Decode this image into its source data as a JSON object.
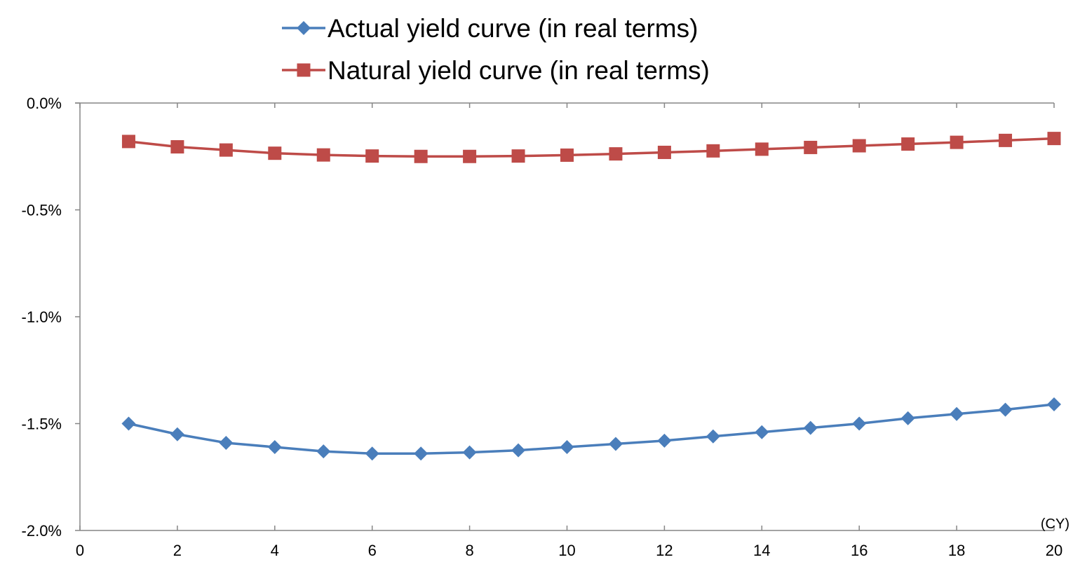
{
  "chart_data": {
    "type": "line",
    "x": [
      1,
      2,
      3,
      4,
      5,
      6,
      7,
      8,
      9,
      10,
      11,
      12,
      13,
      14,
      15,
      16,
      17,
      18,
      19,
      20
    ],
    "series": [
      {
        "name": "Actual yield curve (in real terms)",
        "color": "#4a7ebb",
        "marker": "diamond",
        "values": [
          -1.5,
          -1.55,
          -1.59,
          -1.61,
          -1.63,
          -1.64,
          -1.64,
          -1.635,
          -1.625,
          -1.61,
          -1.595,
          -1.58,
          -1.56,
          -1.54,
          -1.52,
          -1.5,
          -1.475,
          -1.455,
          -1.435,
          -1.41
        ]
      },
      {
        "name": "Natural yield curve (in real terms)",
        "color": "#be4b48",
        "marker": "square",
        "values": [
          -0.18,
          -0.205,
          -0.22,
          -0.235,
          -0.243,
          -0.248,
          -0.25,
          -0.25,
          -0.248,
          -0.244,
          -0.238,
          -0.231,
          -0.224,
          -0.216,
          -0.208,
          -0.2,
          -0.192,
          -0.184,
          -0.175,
          -0.166
        ]
      }
    ],
    "xlim": [
      0,
      20
    ],
    "ylim": [
      -2.0,
      0.0
    ],
    "x_ticks": [
      "0",
      "2",
      "4",
      "6",
      "8",
      "10",
      "12",
      "14",
      "16",
      "18",
      "20"
    ],
    "y_ticks": [
      "0.0%",
      "-0.5%",
      "-1.0%",
      "-1.5%",
      "-2.0%"
    ],
    "x_unit_label": "(CY)",
    "xlabel": "",
    "ylabel": "",
    "grid": false,
    "legend_position": "top"
  }
}
